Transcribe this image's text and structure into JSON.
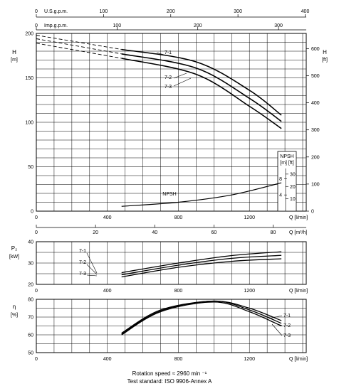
{
  "chart_data": [
    {
      "type": "line",
      "name": "head-curve",
      "xlabel": "Q [l/min]",
      "x_ticks": [
        0,
        400,
        800,
        1200
      ],
      "xlim": [
        0,
        1520
      ],
      "ylabel": "H [m]",
      "y_ticks": [
        0,
        50,
        100,
        150,
        200
      ],
      "ylim": [
        0,
        200
      ],
      "ylabel_right": "H [ft]",
      "y_right_ticks": [
        0,
        100,
        200,
        300,
        400,
        500,
        600
      ],
      "top_axis_1": {
        "label": "U.S.g.p.m.",
        "ticks": [
          0,
          100,
          200,
          300,
          400
        ]
      },
      "top_axis_2": {
        "label": "Imp.g.p.m.",
        "ticks": [
          0,
          100,
          200,
          300
        ]
      },
      "grid": true,
      "series": [
        {
          "name": "7-1",
          "x": [
            0,
            480,
            900,
            1200,
            1380
          ],
          "y": [
            198,
            182,
            168,
            136,
            108
          ]
        },
        {
          "name": "7-2",
          "x": [
            0,
            480,
            900,
            1200,
            1380
          ],
          "y": [
            194,
            177,
            161,
            127,
            101
          ]
        },
        {
          "name": "7-3",
          "x": [
            0,
            480,
            900,
            1200,
            1380
          ],
          "y": [
            189,
            172,
            154,
            118,
            93
          ]
        }
      ]
    },
    {
      "type": "line",
      "name": "npsh-curve",
      "title": "NPSH",
      "ylabel": "NPSH [m] [ft]",
      "y_ticks_m": [
        4,
        8
      ],
      "y_ticks_ft": [
        10,
        20,
        30
      ],
      "series": [
        {
          "name": "NPSH",
          "x": [
            480,
            800,
            1100,
            1380
          ],
          "y": [
            1.2,
            2.2,
            4.0,
            7.0
          ]
        }
      ]
    },
    {
      "type": "line",
      "name": "power-curve",
      "xlabel_top": "Q [m³/h]",
      "x_top_ticks": [
        0,
        20,
        40,
        60,
        80
      ],
      "xlabel": "Q [l/min]",
      "x_ticks": [
        0,
        400,
        800,
        1200
      ],
      "ylabel": "P2 [kW]",
      "y_ticks": [
        20,
        30,
        40
      ],
      "ylim": [
        20,
        40
      ],
      "grid": true,
      "series": [
        {
          "name": "7-1",
          "x": [
            480,
            800,
            1100,
            1380
          ],
          "y": [
            25.5,
            30,
            33.5,
            35.3
          ]
        },
        {
          "name": "7-2",
          "x": [
            480,
            800,
            1100,
            1380
          ],
          "y": [
            24.5,
            29,
            32.2,
            33.6
          ]
        },
        {
          "name": "7-3",
          "x": [
            480,
            800,
            1100,
            1380
          ],
          "y": [
            23.5,
            28,
            30.8,
            32
          ]
        }
      ]
    },
    {
      "type": "line",
      "name": "efficiency-curve",
      "xlabel": "Q [l/min]",
      "x_ticks": [
        0,
        400,
        800,
        1200
      ],
      "ylabel": "η [%]",
      "y_ticks": [
        50,
        60,
        70,
        80
      ],
      "ylim": [
        50,
        80
      ],
      "grid": true,
      "series": [
        {
          "name": "7-1",
          "x": [
            480,
            700,
            1000,
            1200,
            1380
          ],
          "y": [
            61,
            74,
            79,
            75,
            68
          ]
        },
        {
          "name": "7-2",
          "x": [
            480,
            700,
            1000,
            1200,
            1380
          ],
          "y": [
            60.5,
            73.5,
            79,
            74,
            66.5
          ]
        },
        {
          "name": "7-3",
          "x": [
            480,
            700,
            1000,
            1200,
            1380
          ],
          "y": [
            60,
            73,
            78.5,
            73,
            65
          ]
        }
      ]
    }
  ],
  "footer": {
    "rotation_speed": "Rotation speed ≈ 2960 min ⁻¹",
    "test_standard": "Test standard: ISO 9906-Annex A"
  }
}
